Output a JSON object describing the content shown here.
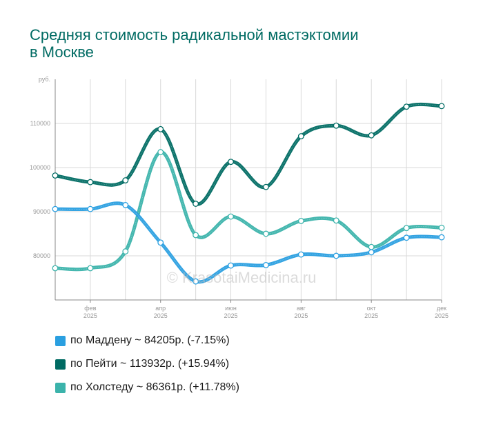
{
  "title_lines": [
    "Средняя стоимость радикальной мастэктомии",
    "в Москве"
  ],
  "watermark": "© KrasotaiMedicina.ru",
  "colors": {
    "title": "#006b63",
    "grid": "#d9d9d9",
    "axis": "#888888",
    "tick_text": "#999999"
  },
  "chart_data": {
    "type": "line",
    "title": "Средняя стоимость радикальной мастэктомии в Москве",
    "ylabel": "руб.",
    "ylim": [
      70000,
      120000
    ],
    "y_ticks": [
      80000,
      90000,
      100000,
      110000
    ],
    "y_tick_labels": [
      "80000",
      "90000",
      "100000",
      "110000"
    ],
    "x_tick_labels": [
      {
        "month": "фев",
        "year": "2025"
      },
      {
        "month": "апр",
        "year": "2025"
      },
      {
        "month": "июн",
        "year": "2025"
      },
      {
        "month": "авг",
        "year": "2025"
      },
      {
        "month": "окт",
        "year": "2025"
      },
      {
        "month": "дек",
        "year": "2025"
      }
    ],
    "x_tick_positions": [
      1,
      3,
      5,
      7,
      9,
      11
    ],
    "points_count": 12,
    "series": [
      {
        "name": "по Маддену",
        "color": "#2a9fe0",
        "values": [
          90600,
          90600,
          91500,
          83000,
          74200,
          77800,
          77900,
          80300,
          80000,
          80800,
          84100,
          84205
        ]
      },
      {
        "name": "по Пейти",
        "color": "#006b63",
        "values": [
          98200,
          96700,
          97100,
          108700,
          91800,
          101300,
          95600,
          107100,
          109500,
          107300,
          113800,
          113932
        ]
      },
      {
        "name": "по Холстеду",
        "color": "#3bb3ab",
        "values": [
          77200,
          77200,
          81000,
          103500,
          84700,
          88900,
          85000,
          87900,
          88000,
          82000,
          86300,
          86361
        ]
      }
    ]
  },
  "legend": [
    {
      "label": "по Маддену ~ 84205р. (-7.15%)",
      "color": "#2a9fe0"
    },
    {
      "label": "по Пейти ~ 113932р. (+15.94%)",
      "color": "#006b63"
    },
    {
      "label": "по Холстеду ~ 86361р. (+11.78%)",
      "color": "#3bb3ab"
    }
  ]
}
